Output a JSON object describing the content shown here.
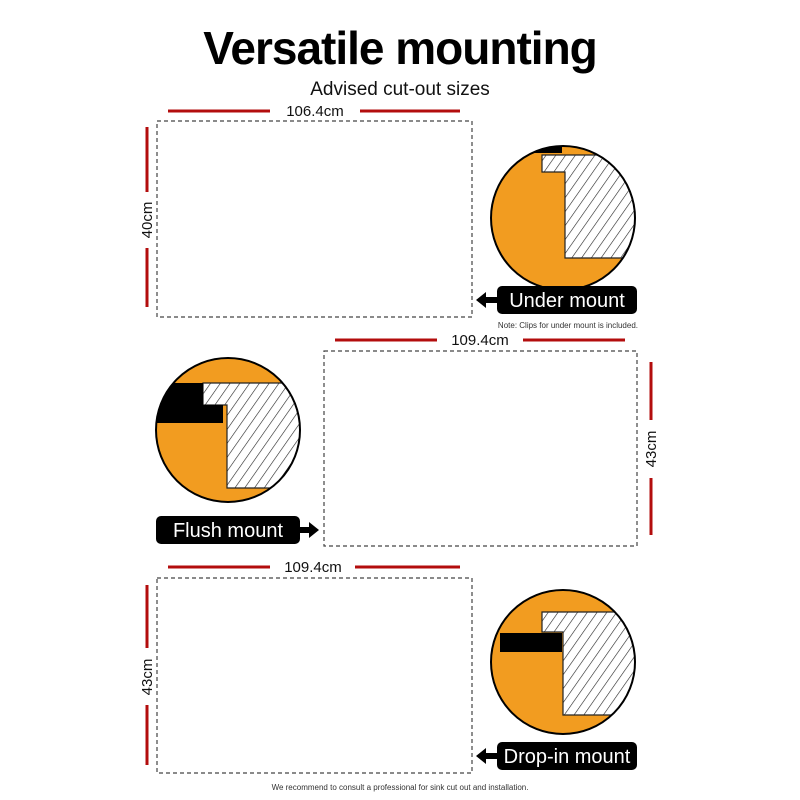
{
  "header": {
    "title": "Versatile mounting",
    "subtitle": "Advised cut-out sizes"
  },
  "colors": {
    "accent_red": "#b30d0d",
    "orange": "#f29c20",
    "black": "#000000"
  },
  "panels": [
    {
      "width_label": "106.4cm",
      "height_label": "40cm",
      "mount_label": "Under mount",
      "arrow": "arrow-left-icon",
      "note": "Note: Clips for under mount is included."
    },
    {
      "width_label": "109.4cm",
      "height_label": "43cm",
      "mount_label": "Flush mount",
      "arrow": "arrow-right-icon"
    },
    {
      "width_label": "109.4cm",
      "height_label": "43cm",
      "mount_label": "Drop-in mount",
      "arrow": "arrow-left-icon"
    }
  ],
  "footer": {
    "text": "We recommend to consult a professional for sink cut out and installation."
  }
}
